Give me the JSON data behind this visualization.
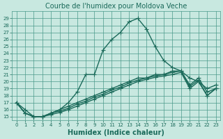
{
  "title": "Courbe de l'humidex pour Moldova Veche",
  "xlabel": "Humidex (Indice chaleur)",
  "background_color": "#c8e8e0",
  "grid_color": "#4a9a8a",
  "line_color": "#1a6a5a",
  "xlim": [
    -0.5,
    23.5
  ],
  "ylim": [
    14.5,
    30.0
  ],
  "xticks": [
    0,
    1,
    2,
    3,
    4,
    5,
    6,
    7,
    8,
    9,
    10,
    11,
    12,
    13,
    14,
    15,
    16,
    17,
    18,
    19,
    20,
    21,
    22,
    23
  ],
  "yticks": [
    15,
    16,
    17,
    18,
    19,
    20,
    21,
    22,
    23,
    24,
    25,
    26,
    27,
    28,
    29
  ],
  "series": [
    [
      17.0,
      16.0,
      15.0,
      15.0,
      15.5,
      16.0,
      17.0,
      18.5,
      21.0,
      21.0,
      24.5,
      26.0,
      27.0,
      28.5,
      29.0,
      27.5,
      25.0,
      23.0,
      22.0,
      21.5,
      20.5,
      20.0,
      19.0,
      19.5
    ],
    [
      17.0,
      15.5,
      15.0,
      15.0,
      15.5,
      16.0,
      16.5,
      17.0,
      17.5,
      18.0,
      18.5,
      19.0,
      19.5,
      20.0,
      20.5,
      20.5,
      21.0,
      21.0,
      21.5,
      21.5,
      19.5,
      20.5,
      18.5,
      19.0
    ],
    [
      17.0,
      15.5,
      15.0,
      15.0,
      15.5,
      15.8,
      16.2,
      16.8,
      17.2,
      17.8,
      18.2,
      18.8,
      19.2,
      19.8,
      20.2,
      20.5,
      20.8,
      21.0,
      21.3,
      21.5,
      19.3,
      20.2,
      18.0,
      19.0
    ],
    [
      17.0,
      15.5,
      15.0,
      15.0,
      15.3,
      15.6,
      16.0,
      16.5,
      17.0,
      17.5,
      18.0,
      18.5,
      19.0,
      19.5,
      20.0,
      20.3,
      20.6,
      20.8,
      21.0,
      21.3,
      19.0,
      20.0,
      18.0,
      19.0
    ]
  ],
  "marker": "+",
  "marker_size": 4,
  "linewidth": 1.0,
  "title_fontsize": 7,
  "label_fontsize": 7,
  "tick_fontsize": 5
}
